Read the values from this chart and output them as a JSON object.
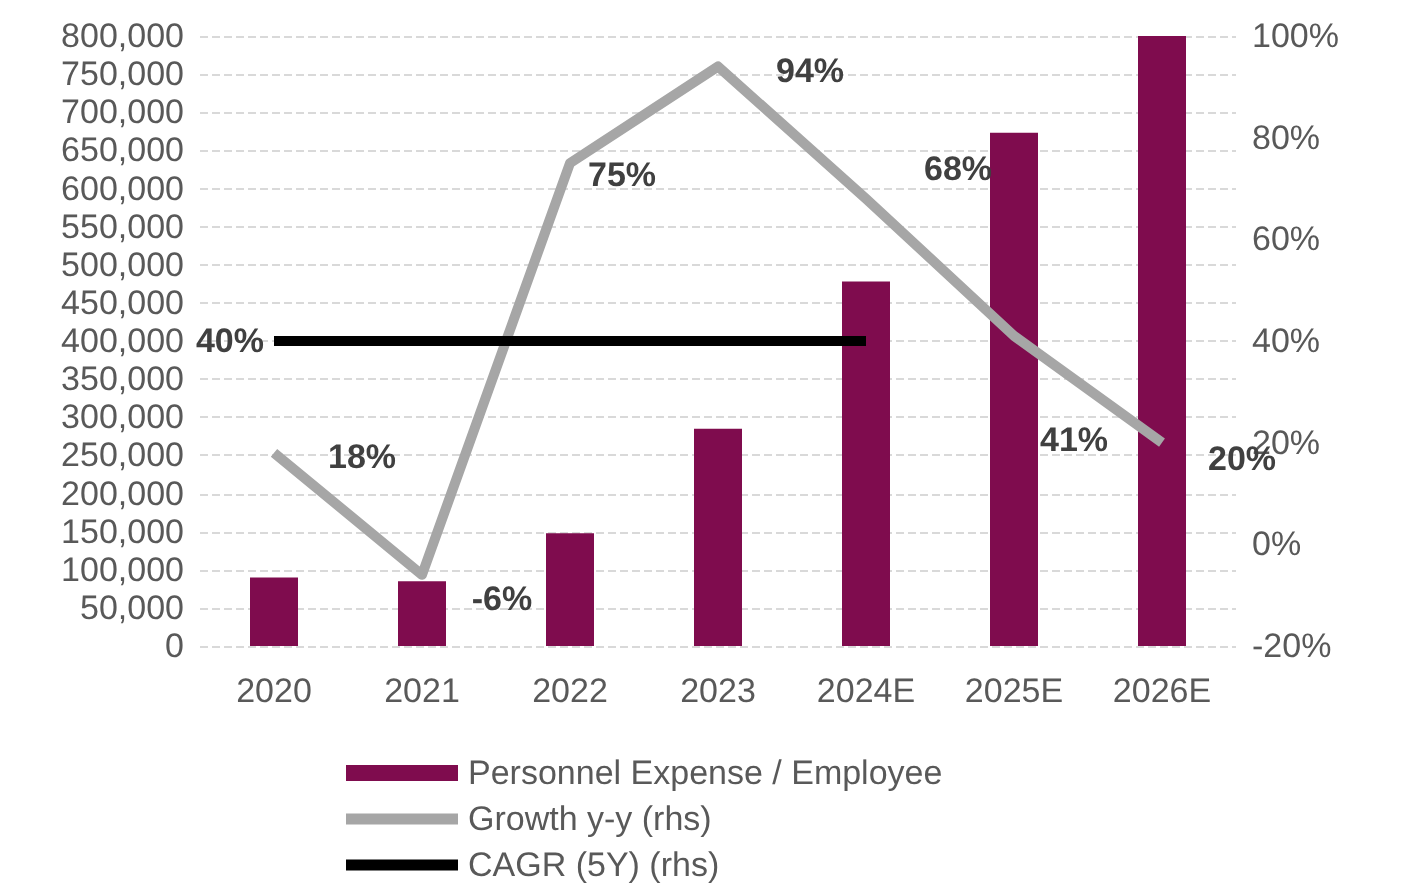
{
  "chart_data": {
    "type": "bar",
    "categories": [
      "2020",
      "2021",
      "2022",
      "2023",
      "2024E",
      "2025E",
      "2026E"
    ],
    "series": [
      {
        "name": "Personnel Expense / Employee",
        "color": "#7f0c4e",
        "values": [
          90000,
          85000,
          148000,
          285000,
          478000,
          673000,
          800000
        ]
      },
      {
        "name": "Growth y-y (rhs)",
        "type": "line",
        "axis": "y2",
        "color": "#a6a6a6",
        "values": [
          18,
          -6,
          75,
          94,
          68,
          41,
          20
        ],
        "value_labels": [
          "18%",
          "-6%",
          "75%",
          "94%",
          "68%",
          "41%",
          "20%"
        ]
      },
      {
        "name": "CAGR (5Y) (rhs)",
        "type": "line",
        "axis": "y2",
        "color": "#000000",
        "values": [
          40,
          40,
          40,
          40,
          40,
          null,
          null
        ],
        "value_labels": [
          "40%",
          null,
          null,
          null,
          null,
          null,
          null
        ]
      }
    ],
    "ylim": [
      0,
      800000
    ],
    "yticks": [
      {
        "value": 0,
        "label": "0"
      },
      {
        "value": 50000,
        "label": "50,000"
      },
      {
        "value": 100000,
        "label": "100,000"
      },
      {
        "value": 150000,
        "label": "150,000"
      },
      {
        "value": 200000,
        "label": "200,000"
      },
      {
        "value": 250000,
        "label": "250,000"
      },
      {
        "value": 300000,
        "label": "300,000"
      },
      {
        "value": 350000,
        "label": "350,000"
      },
      {
        "value": 400000,
        "label": "400,000"
      },
      {
        "value": 450000,
        "label": "450,000"
      },
      {
        "value": 500000,
        "label": "500,000"
      },
      {
        "value": 550000,
        "label": "550,000"
      },
      {
        "value": 600000,
        "label": "600,000"
      },
      {
        "value": 650000,
        "label": "650,000"
      },
      {
        "value": 700000,
        "label": "700,000"
      },
      {
        "value": 750000,
        "label": "750,000"
      },
      {
        "value": 800000,
        "label": "800,000"
      }
    ],
    "y2lim": [
      -20,
      100
    ],
    "y2ticks": [
      {
        "value": -20,
        "label": "-20%"
      },
      {
        "value": 0,
        "label": "0%"
      },
      {
        "value": 20,
        "label": "20%"
      },
      {
        "value": 40,
        "label": "40%"
      },
      {
        "value": 60,
        "label": "60%"
      },
      {
        "value": 80,
        "label": "80%"
      },
      {
        "value": 100,
        "label": "100%"
      }
    ],
    "grid": "y",
    "legend": "bottom",
    "marker": "none"
  }
}
